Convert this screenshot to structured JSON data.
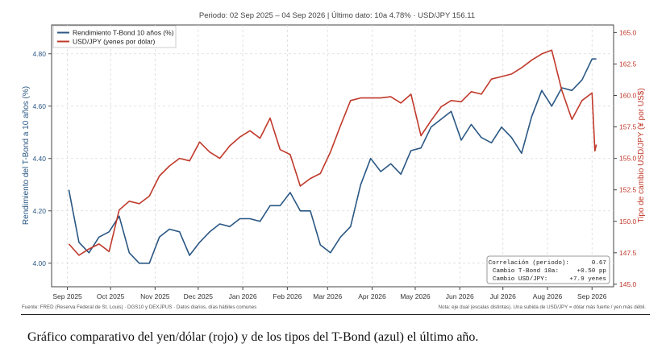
{
  "header": {
    "title": "Periodo: 02 Sep 2025 – 04 Sep 2026   |   Último dato: 10a 4.78%   ·   USD/JPY 156.11"
  },
  "footer": {
    "source": "Fuente: FRED (Reserva Federal de St. Louis)  ·  DGS10 y DEXJPUS  ·  Datos diarios, días hábiles comunes",
    "note": "Nota: eje dual (escalas distintas). Una subida de USD/JPY = dólar más fuerte / yen más débil."
  },
  "caption": "Gráfico comparativo del yen/dólar (rojo) y de los tipos del T-Bond (azul) el último año.",
  "stats_box": {
    "lines": [
      {
        "label": "Correlación (periodo):",
        "value": "0.67"
      },
      {
        "label": "Cambio T-Bond 10a:",
        "value": "+0.50 pp"
      },
      {
        "label": "Cambio USD/JPY:",
        "value": "+7.9 yenes"
      }
    ]
  },
  "chart_data": {
    "type": "line",
    "xlabel": "",
    "ylabel": "Rendimiento del T-Bond a 10 años (%)",
    "y2label": "Tipo de cambio USD/JPY (¥ por US$)",
    "x_tick_labels": [
      "Sep 2025",
      "Oct 2025",
      "Nov 2025",
      "Dec 2025",
      "Jan 2026",
      "Feb 2026",
      "Mar 2026",
      "Apr 2026",
      "May 2026",
      "Jun 2026",
      "Jul 2026",
      "Aug 2026",
      "Sep 2026"
    ],
    "x_tick_dates": [
      "2025-09-01",
      "2025-10-01",
      "2025-11-01",
      "2025-12-01",
      "2026-01-01",
      "2026-02-01",
      "2026-03-01",
      "2026-04-01",
      "2026-05-01",
      "2026-06-01",
      "2026-07-01",
      "2026-08-01",
      "2026-09-01"
    ],
    "xlim": [
      "2025-08-21",
      "2026-09-16"
    ],
    "y_left": {
      "lim": [
        3.91,
        4.91
      ],
      "ticks": [
        "4.00",
        "4.20",
        "4.40",
        "4.60",
        "4.80"
      ],
      "color": "#2a5783"
    },
    "y_right": {
      "lim": [
        144.8,
        165.6
      ],
      "ticks": [
        "145.0",
        "147.5",
        "150.0",
        "152.5",
        "155.0",
        "157.5",
        "160.0",
        "162.5",
        "165.0"
      ],
      "color": "#c0392b"
    },
    "grid": true,
    "legend_position": "top-left",
    "series": [
      {
        "name": "Rendimiento T-Bond 10 años (%)",
        "axis": "left",
        "color": "#2a5783",
        "points": [
          [
            "2025-09-02",
            4.28
          ],
          [
            "2025-09-09",
            4.08
          ],
          [
            "2025-09-16",
            4.04
          ],
          [
            "2025-09-23",
            4.1
          ],
          [
            "2025-09-30",
            4.12
          ],
          [
            "2025-10-07",
            4.18
          ],
          [
            "2025-10-14",
            4.04
          ],
          [
            "2025-10-21",
            4.0
          ],
          [
            "2025-10-28",
            4.0
          ],
          [
            "2025-11-04",
            4.1
          ],
          [
            "2025-11-11",
            4.13
          ],
          [
            "2025-11-18",
            4.12
          ],
          [
            "2025-11-25",
            4.03
          ],
          [
            "2025-12-02",
            4.08
          ],
          [
            "2025-12-09",
            4.12
          ],
          [
            "2025-12-16",
            4.15
          ],
          [
            "2025-12-23",
            4.14
          ],
          [
            "2025-12-30",
            4.17
          ],
          [
            "2026-01-06",
            4.17
          ],
          [
            "2026-01-13",
            4.16
          ],
          [
            "2026-01-20",
            4.22
          ],
          [
            "2026-01-27",
            4.22
          ],
          [
            "2026-02-03",
            4.27
          ],
          [
            "2026-02-10",
            4.2
          ],
          [
            "2026-02-17",
            4.2
          ],
          [
            "2026-02-24",
            4.07
          ],
          [
            "2026-03-03",
            4.04
          ],
          [
            "2026-03-10",
            4.1
          ],
          [
            "2026-03-17",
            4.14
          ],
          [
            "2026-03-24",
            4.3
          ],
          [
            "2026-03-31",
            4.4
          ],
          [
            "2026-04-07",
            4.35
          ],
          [
            "2026-04-14",
            4.38
          ],
          [
            "2026-04-21",
            4.34
          ],
          [
            "2026-04-28",
            4.43
          ],
          [
            "2026-05-05",
            4.44
          ],
          [
            "2026-05-12",
            4.52
          ],
          [
            "2026-05-19",
            4.55
          ],
          [
            "2026-05-26",
            4.58
          ],
          [
            "2026-06-02",
            4.47
          ],
          [
            "2026-06-09",
            4.53
          ],
          [
            "2026-06-16",
            4.48
          ],
          [
            "2026-06-23",
            4.46
          ],
          [
            "2026-06-30",
            4.52
          ],
          [
            "2026-07-07",
            4.48
          ],
          [
            "2026-07-14",
            4.42
          ],
          [
            "2026-07-21",
            4.56
          ],
          [
            "2026-07-28",
            4.66
          ],
          [
            "2026-08-04",
            4.6
          ],
          [
            "2026-08-11",
            4.67
          ],
          [
            "2026-08-18",
            4.66
          ],
          [
            "2026-08-25",
            4.7
          ],
          [
            "2026-09-01",
            4.78
          ],
          [
            "2026-09-04",
            4.78
          ]
        ]
      },
      {
        "name": "USD/JPY (yenes por dólar)",
        "axis": "right",
        "color": "#c0392b",
        "points": [
          [
            "2025-09-02",
            148.2
          ],
          [
            "2025-09-09",
            147.3
          ],
          [
            "2025-09-16",
            147.8
          ],
          [
            "2025-09-23",
            148.2
          ],
          [
            "2025-09-30",
            147.6
          ],
          [
            "2025-10-07",
            150.9
          ],
          [
            "2025-10-14",
            151.6
          ],
          [
            "2025-10-21",
            151.4
          ],
          [
            "2025-10-28",
            152.0
          ],
          [
            "2025-11-04",
            153.6
          ],
          [
            "2025-11-11",
            154.4
          ],
          [
            "2025-11-18",
            155.0
          ],
          [
            "2025-11-25",
            154.8
          ],
          [
            "2025-12-02",
            156.3
          ],
          [
            "2025-12-09",
            155.5
          ],
          [
            "2025-12-16",
            155.0
          ],
          [
            "2025-12-23",
            156.0
          ],
          [
            "2025-12-30",
            156.7
          ],
          [
            "2026-01-06",
            157.2
          ],
          [
            "2026-01-13",
            156.6
          ],
          [
            "2026-01-20",
            158.2
          ],
          [
            "2026-01-27",
            155.7
          ],
          [
            "2026-02-03",
            155.3
          ],
          [
            "2026-02-10",
            152.8
          ],
          [
            "2026-02-17",
            153.4
          ],
          [
            "2026-02-24",
            153.8
          ],
          [
            "2026-03-03",
            155.5
          ],
          [
            "2026-03-10",
            157.6
          ],
          [
            "2026-03-17",
            159.6
          ],
          [
            "2026-03-24",
            159.8
          ],
          [
            "2026-03-31",
            159.8
          ],
          [
            "2026-04-07",
            159.8
          ],
          [
            "2026-04-14",
            159.9
          ],
          [
            "2026-04-21",
            159.4
          ],
          [
            "2026-04-28",
            160.1
          ],
          [
            "2026-05-05",
            156.8
          ],
          [
            "2026-05-12",
            158.0
          ],
          [
            "2026-05-19",
            159.1
          ],
          [
            "2026-05-26",
            159.6
          ],
          [
            "2026-06-02",
            159.5
          ],
          [
            "2026-06-09",
            160.3
          ],
          [
            "2026-06-16",
            160.1
          ],
          [
            "2026-06-23",
            161.3
          ],
          [
            "2026-06-30",
            161.5
          ],
          [
            "2026-07-07",
            161.7
          ],
          [
            "2026-07-14",
            162.2
          ],
          [
            "2026-07-21",
            162.8
          ],
          [
            "2026-07-28",
            163.3
          ],
          [
            "2026-08-04",
            163.6
          ],
          [
            "2026-08-11",
            160.4
          ],
          [
            "2026-08-18",
            158.1
          ],
          [
            "2026-08-25",
            159.6
          ],
          [
            "2026-09-01",
            160.2
          ],
          [
            "2026-09-03",
            155.6
          ],
          [
            "2026-09-04",
            156.1
          ]
        ]
      }
    ]
  }
}
